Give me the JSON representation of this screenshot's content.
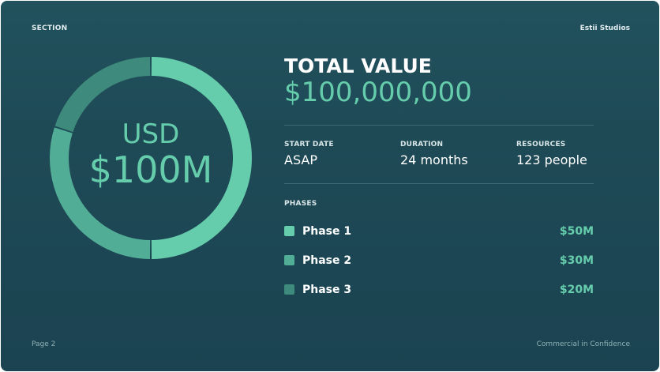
{
  "header": {
    "section": "SECTION",
    "brand": "Estii Studios"
  },
  "footer": {
    "page": "Page 2",
    "confidentiality": "Commercial in Confidence"
  },
  "donut": {
    "currency": "USD",
    "amount": "$100M"
  },
  "summary": {
    "title": "TOTAL VALUE",
    "value": "$100,000,000"
  },
  "stats": [
    {
      "label": "START DATE",
      "value": "ASAP"
    },
    {
      "label": "DURATION",
      "value": "24 months"
    },
    {
      "label": "RESOURCES",
      "value": "123 people"
    }
  ],
  "phases_label": "PHASES",
  "phases": [
    {
      "name": "Phase 1",
      "value": "$50M",
      "color": "#66cdac"
    },
    {
      "name": "Phase 2",
      "value": "$30M",
      "color": "#52ad97"
    },
    {
      "name": "Phase 3",
      "value": "$20M",
      "color": "#3e8a7c"
    }
  ],
  "chart_data": {
    "type": "pie",
    "categories": [
      "Phase 1",
      "Phase 2",
      "Phase 3"
    ],
    "values": [
      50,
      30,
      20
    ],
    "colors": [
      "#66cdac",
      "#52ad97",
      "#3e8a7c"
    ]
  }
}
